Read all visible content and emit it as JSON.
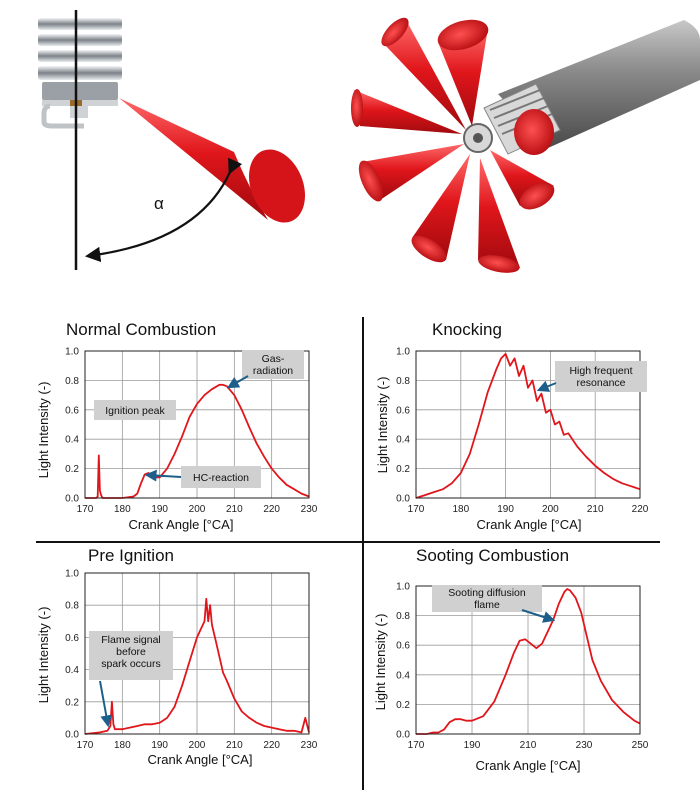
{
  "figure": {
    "alpha_symbol": "α",
    "colors": {
      "cone": "#e0161b",
      "curve": "#e0161b",
      "grid": "#9a9a9a",
      "arrow": "#1d5f8a",
      "box": "#d0d0d0"
    },
    "icons": [
      "spark-plug-icon",
      "probe-cylinder-icon",
      "angle-arrow-icon"
    ]
  },
  "chart_data": [
    {
      "id": "normal",
      "type": "line",
      "title": "Normal Combustion",
      "xlabel": "Crank Angle [°CA]",
      "ylabel": "Light Intensity (-)",
      "xlim": [
        170,
        230
      ],
      "ylim": [
        0,
        1.0
      ],
      "xticks": [
        170,
        180,
        190,
        200,
        210,
        220,
        230
      ],
      "yticks": [
        0,
        0.2,
        0.4,
        0.6,
        0.8,
        1.0
      ],
      "grid": true,
      "series": [
        {
          "x": [
            170,
            173,
            173.4,
            173.7,
            174.0,
            174.3,
            174.7,
            175.5,
            180,
            183,
            184,
            185,
            186,
            187,
            188,
            189,
            190,
            192,
            194,
            196,
            198,
            200,
            202,
            204,
            206,
            207,
            208,
            210,
            212,
            214,
            216,
            218,
            220,
            222,
            224,
            226,
            228,
            230
          ],
          "y": [
            0,
            0,
            0.01,
            0.29,
            0.05,
            0.02,
            0,
            0,
            0,
            0.01,
            0.03,
            0.1,
            0.16,
            0.17,
            0.15,
            0.14,
            0.14,
            0.2,
            0.3,
            0.42,
            0.55,
            0.64,
            0.7,
            0.74,
            0.77,
            0.77,
            0.76,
            0.7,
            0.6,
            0.48,
            0.37,
            0.28,
            0.2,
            0.14,
            0.09,
            0.06,
            0.03,
            0.01
          ]
        }
      ],
      "annotations": [
        {
          "label": "Gas-\nradiation",
          "x": 206.5,
          "y": 0.77
        },
        {
          "label": "Ignition peak"
        },
        {
          "label": "HC-reaction",
          "x": 186.5,
          "y": 0.16
        }
      ]
    },
    {
      "id": "knocking",
      "type": "line",
      "title": "Knocking",
      "xlabel": "Crank Angle [°CA]",
      "ylabel": "Light Intensity (-)",
      "xlim": [
        170,
        220
      ],
      "ylim": [
        0,
        1.0
      ],
      "xticks": [
        170,
        180,
        190,
        200,
        210,
        220
      ],
      "yticks": [
        0,
        0.2,
        0.4,
        0.6,
        0.8,
        1.0
      ],
      "grid": true,
      "series": [
        {
          "x": [
            170,
            172,
            174,
            176,
            178,
            180,
            182,
            184,
            186,
            188,
            189,
            190,
            191,
            192,
            193,
            194,
            195,
            196,
            197,
            198,
            199,
            200,
            201,
            202,
            203,
            204,
            206,
            208,
            210,
            212,
            214,
            216,
            218,
            220
          ],
          "y": [
            0,
            0.02,
            0.04,
            0.06,
            0.1,
            0.17,
            0.3,
            0.5,
            0.72,
            0.88,
            0.95,
            0.98,
            0.9,
            0.95,
            0.83,
            0.9,
            0.75,
            0.8,
            0.66,
            0.71,
            0.58,
            0.6,
            0.5,
            0.52,
            0.43,
            0.44,
            0.35,
            0.28,
            0.22,
            0.17,
            0.13,
            0.1,
            0.08,
            0.06
          ]
        }
      ],
      "annotations": [
        {
          "label": "High frequent\nresonance",
          "x": 196,
          "y": 0.75
        }
      ]
    },
    {
      "id": "preignition",
      "type": "line",
      "title": "Pre Ignition",
      "xlabel": "Crank Angle [°CA]",
      "ylabel": "Light Intensity (-)",
      "xlim": [
        170,
        230
      ],
      "ylim": [
        0,
        1.0
      ],
      "xticks": [
        170,
        180,
        190,
        200,
        210,
        220,
        230
      ],
      "yticks": [
        0,
        0.2,
        0.4,
        0.6,
        0.8,
        1.0
      ],
      "grid": true,
      "series": [
        {
          "x": [
            170,
            174,
            176,
            176.8,
            177.2,
            177.6,
            178,
            180,
            182,
            184,
            186,
            188,
            190,
            192,
            194,
            196,
            198,
            200,
            201,
            202,
            202.5,
            203,
            203.5,
            204,
            205,
            206,
            207,
            208,
            210,
            212,
            214,
            216,
            218,
            220,
            222,
            224,
            226,
            228,
            229,
            230
          ],
          "y": [
            0,
            0.01,
            0.02,
            0.05,
            0.2,
            0.06,
            0.03,
            0.03,
            0.04,
            0.05,
            0.06,
            0.06,
            0.07,
            0.1,
            0.17,
            0.3,
            0.45,
            0.6,
            0.65,
            0.7,
            0.84,
            0.7,
            0.8,
            0.68,
            0.58,
            0.48,
            0.38,
            0.33,
            0.22,
            0.14,
            0.1,
            0.07,
            0.05,
            0.04,
            0.03,
            0.02,
            0.02,
            0.01,
            0.1,
            0.01
          ]
        }
      ],
      "annotations": [
        {
          "label": "Flame signal\nbefore\nspark occurs",
          "x": 177,
          "y": 0.05
        }
      ]
    },
    {
      "id": "sooting",
      "type": "line",
      "title": "Sooting Combustion",
      "xlabel": "Crank Angle [°CA]",
      "ylabel": "Light Intensity (-)",
      "xlim": [
        170,
        250
      ],
      "ylim": [
        0,
        1.0
      ],
      "xticks": [
        170,
        190,
        210,
        230,
        250
      ],
      "yticks": [
        0,
        0.2,
        0.4,
        0.6,
        0.8,
        1.0
      ],
      "grid": true,
      "series": [
        {
          "x": [
            170,
            174,
            176,
            178,
            180,
            182,
            184,
            186,
            188,
            190,
            194,
            198,
            202,
            205,
            207,
            209,
            211,
            213,
            215,
            217,
            219,
            221,
            223,
            224,
            225,
            227,
            229,
            231,
            233,
            236,
            240,
            244,
            248,
            250
          ],
          "y": [
            0,
            0,
            0.01,
            0.01,
            0.03,
            0.08,
            0.1,
            0.1,
            0.09,
            0.09,
            0.12,
            0.22,
            0.4,
            0.55,
            0.63,
            0.64,
            0.61,
            0.58,
            0.61,
            0.69,
            0.77,
            0.88,
            0.96,
            0.98,
            0.97,
            0.92,
            0.82,
            0.66,
            0.5,
            0.36,
            0.23,
            0.15,
            0.09,
            0.07
          ]
        }
      ],
      "annotations": [
        {
          "label": "Sooting  diffusion\nflame",
          "x": 217,
          "y": 0.77
        }
      ]
    }
  ]
}
